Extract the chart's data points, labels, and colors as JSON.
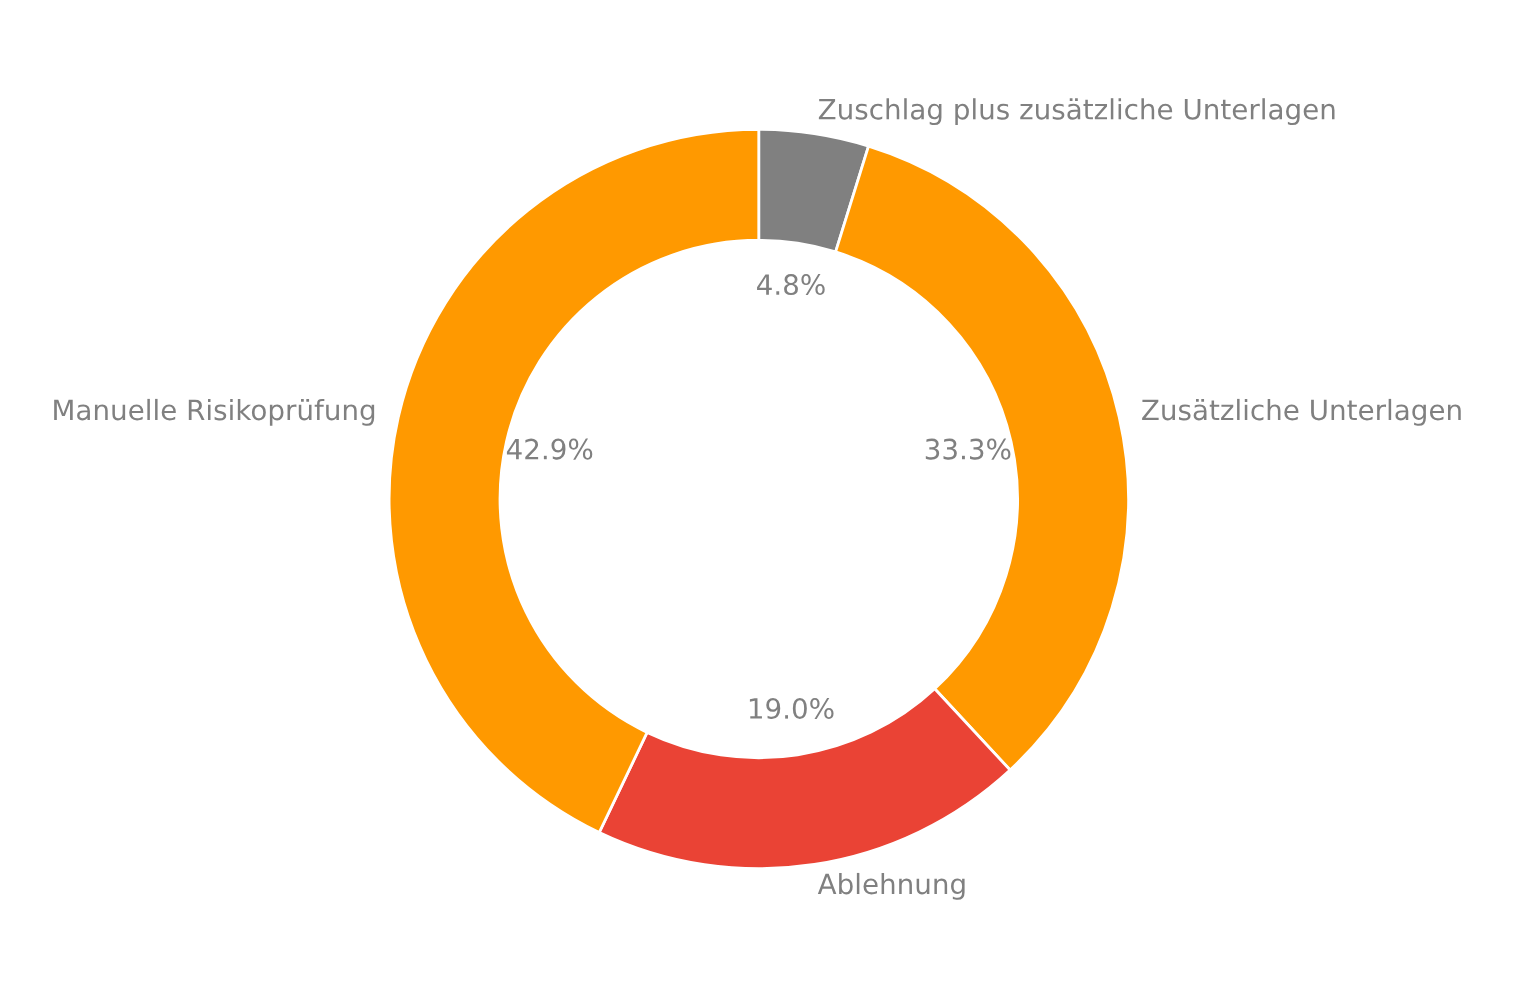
{
  "chart_data": {
    "type": "donut",
    "categories": [
      "Zuschlag plus zusätzliche Unterlagen",
      "Zusätzliche Unterlagen",
      "Ablehnung",
      "Manuelle Risikoprüfung"
    ],
    "values": [
      4.8,
      33.3,
      19.0,
      42.9
    ],
    "value_labels": [
      "4.8%",
      "33.3%",
      "19.0%",
      "42.9%"
    ],
    "colors": [
      "#808080",
      "#ff9900",
      "#ea4335",
      "#ff9900"
    ],
    "legend": false
  }
}
